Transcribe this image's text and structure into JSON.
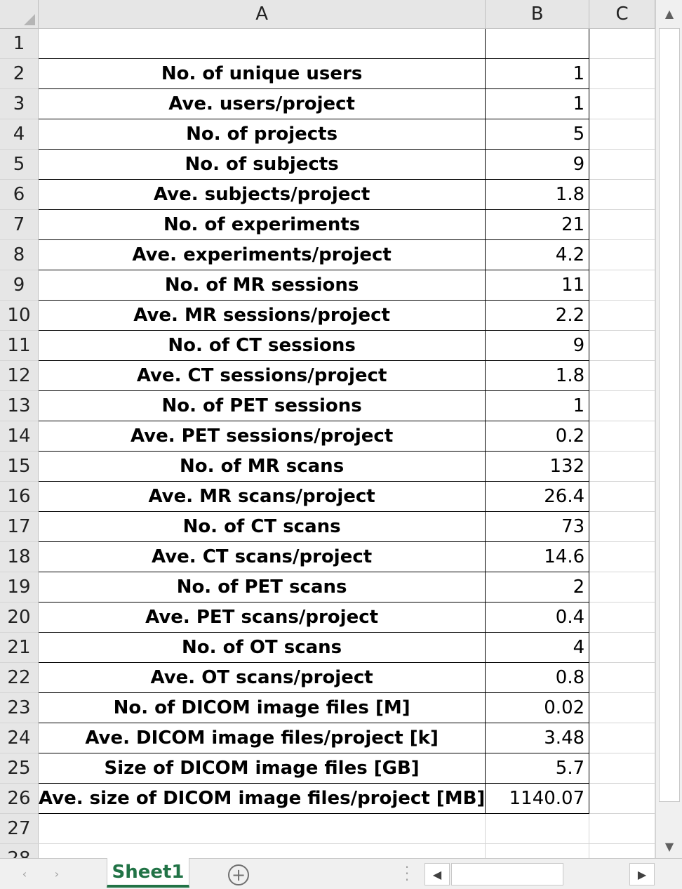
{
  "columns": [
    "A",
    "B",
    "C"
  ],
  "rows": [
    {
      "num": "1",
      "label": "",
      "value": ""
    },
    {
      "num": "2",
      "label": "No. of unique users",
      "value": "1"
    },
    {
      "num": "3",
      "label": "Ave. users/project",
      "value": "1"
    },
    {
      "num": "4",
      "label": "No. of projects",
      "value": "5"
    },
    {
      "num": "5",
      "label": "No. of subjects",
      "value": "9"
    },
    {
      "num": "6",
      "label": "Ave. subjects/project",
      "value": "1.8"
    },
    {
      "num": "7",
      "label": "No. of experiments",
      "value": "21"
    },
    {
      "num": "8",
      "label": "Ave. experiments/project",
      "value": "4.2"
    },
    {
      "num": "9",
      "label": "No. of MR sessions",
      "value": "11"
    },
    {
      "num": "10",
      "label": "Ave. MR sessions/project",
      "value": "2.2"
    },
    {
      "num": "11",
      "label": "No. of CT sessions",
      "value": "9"
    },
    {
      "num": "12",
      "label": "Ave. CT sessions/project",
      "value": "1.8"
    },
    {
      "num": "13",
      "label": "No. of PET sessions",
      "value": "1"
    },
    {
      "num": "14",
      "label": "Ave. PET sessions/project",
      "value": "0.2"
    },
    {
      "num": "15",
      "label": "No. of MR scans",
      "value": "132"
    },
    {
      "num": "16",
      "label": "Ave. MR scans/project",
      "value": "26.4"
    },
    {
      "num": "17",
      "label": "No. of CT scans",
      "value": "73"
    },
    {
      "num": "18",
      "label": "Ave. CT scans/project",
      "value": "14.6"
    },
    {
      "num": "19",
      "label": "No. of PET scans",
      "value": "2"
    },
    {
      "num": "20",
      "label": "Ave. PET scans/project",
      "value": "0.4"
    },
    {
      "num": "21",
      "label": "No. of OT scans",
      "value": "4"
    },
    {
      "num": "22",
      "label": "Ave. OT scans/project",
      "value": "0.8"
    },
    {
      "num": "23",
      "label": "No. of DICOM image files [M]",
      "value": "0.02"
    },
    {
      "num": "24",
      "label": "Ave. DICOM image files/project [k]",
      "value": "3.48"
    },
    {
      "num": "25",
      "label": "Size of DICOM image files [GB]",
      "value": "5.7"
    },
    {
      "num": "26",
      "label": "Ave. size of DICOM image files/project [MB]",
      "value": "1140.07"
    },
    {
      "num": "27",
      "label": "",
      "value": ""
    },
    {
      "num": "28",
      "label": "",
      "value": ""
    }
  ],
  "sheet_tab": {
    "label": "Sheet1",
    "accent_color": "#217346"
  },
  "icons": {
    "add_sheet": "plus-circle-icon",
    "scroll_up": "triangle-up-icon",
    "scroll_down": "triangle-down-icon",
    "scroll_left": "triangle-left-icon",
    "scroll_right": "triangle-right-icon",
    "tab_prev": "chevron-left-icon",
    "tab_next": "chevron-right-icon"
  }
}
